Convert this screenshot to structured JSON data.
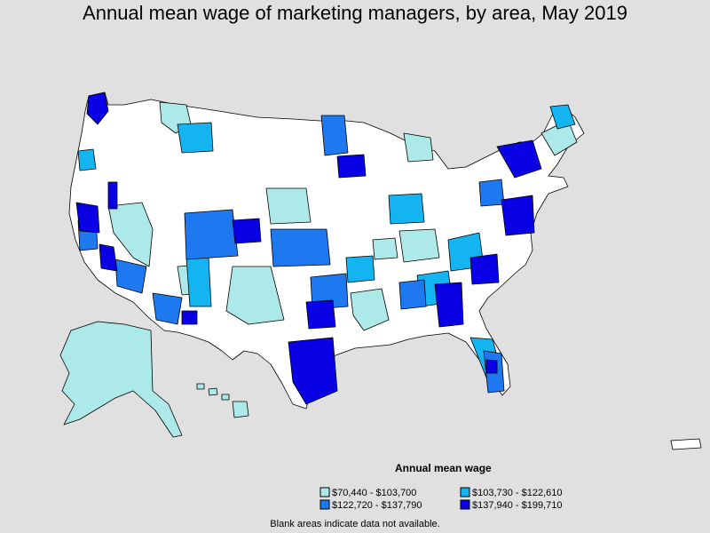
{
  "title": "Annual mean wage of marketing managers, by area, May 2019",
  "legend": {
    "title": "Annual mean wage",
    "items": [
      {
        "label": "$70,440 - $103,700",
        "color": "#aee9e9"
      },
      {
        "label": "$103,730 - $122,610",
        "color": "#14b4f0"
      },
      {
        "label": "$122,720 - $137,790",
        "color": "#1e78f0"
      },
      {
        "label": "$137,940 - $199,710",
        "color": "#0a00e6"
      }
    ]
  },
  "footnote": "Blank areas indicate data not available.",
  "colors": {
    "background": "#e0e0e0",
    "no_data": "#ffffff",
    "border": "#000000"
  }
}
